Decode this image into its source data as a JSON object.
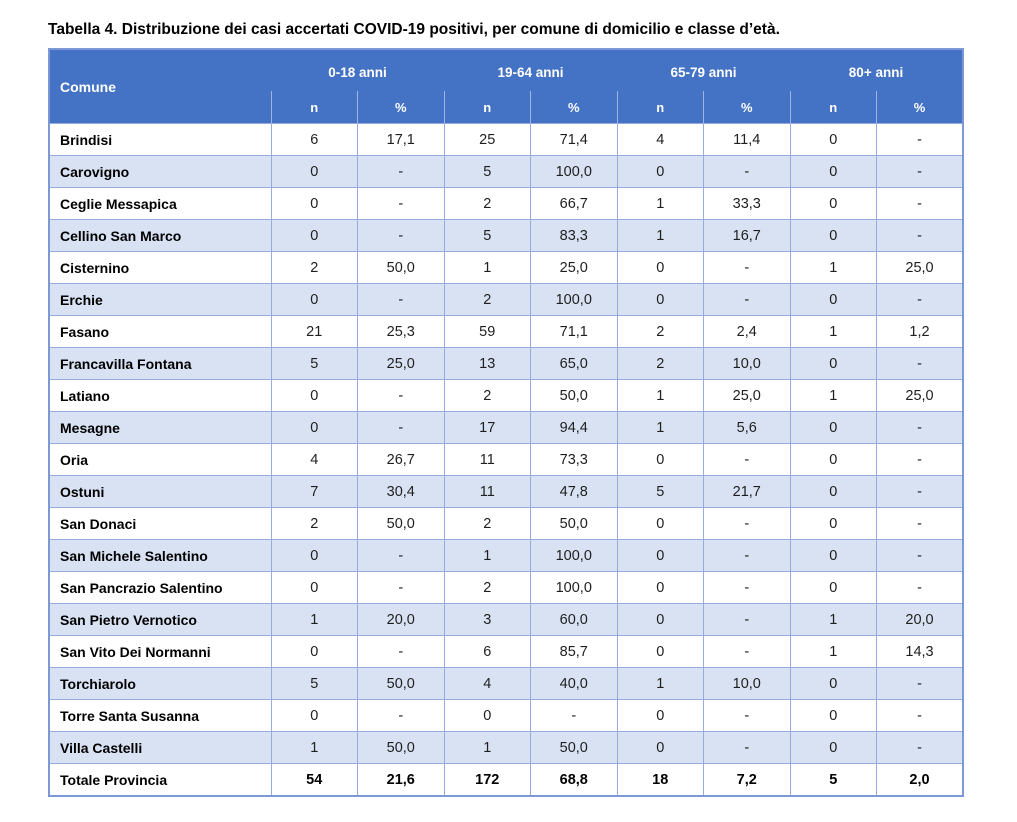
{
  "title": "Tabella 4. Distribuzione dei casi accertati COVID-19 positivi, per comune di domicilio e classe d’età.",
  "colors": {
    "header_bg": "#4472C4",
    "header_text": "#FFFFFF",
    "band_bg": "#D9E2F3",
    "grid_border": "#95ACDC",
    "outer_border": "#7C99D6"
  },
  "table": {
    "comune_header": "Comune",
    "age_groups": [
      "0-18 anni",
      "19-64 anni",
      "65-79 anni",
      "80+ anni"
    ],
    "sub_headers": [
      "n",
      "%"
    ],
    "rows": [
      {
        "comune": "Brindisi",
        "values": [
          "6",
          "17,1",
          "25",
          "71,4",
          "4",
          "11,4",
          "0",
          "-"
        ]
      },
      {
        "comune": "Carovigno",
        "values": [
          "0",
          "-",
          "5",
          "100,0",
          "0",
          "-",
          "0",
          "-"
        ]
      },
      {
        "comune": "Ceglie Messapica",
        "values": [
          "0",
          "-",
          "2",
          "66,7",
          "1",
          "33,3",
          "0",
          "-"
        ]
      },
      {
        "comune": "Cellino San Marco",
        "values": [
          "0",
          "-",
          "5",
          "83,3",
          "1",
          "16,7",
          "0",
          "-"
        ]
      },
      {
        "comune": "Cisternino",
        "values": [
          "2",
          "50,0",
          "1",
          "25,0",
          "0",
          "-",
          "1",
          "25,0"
        ]
      },
      {
        "comune": "Erchie",
        "values": [
          "0",
          "-",
          "2",
          "100,0",
          "0",
          "-",
          "0",
          "-"
        ]
      },
      {
        "comune": "Fasano",
        "values": [
          "21",
          "25,3",
          "59",
          "71,1",
          "2",
          "2,4",
          "1",
          "1,2"
        ]
      },
      {
        "comune": "Francavilla Fontana",
        "values": [
          "5",
          "25,0",
          "13",
          "65,0",
          "2",
          "10,0",
          "0",
          "-"
        ]
      },
      {
        "comune": "Latiano",
        "values": [
          "0",
          "-",
          "2",
          "50,0",
          "1",
          "25,0",
          "1",
          "25,0"
        ]
      },
      {
        "comune": "Mesagne",
        "values": [
          "0",
          "-",
          "17",
          "94,4",
          "1",
          "5,6",
          "0",
          "-"
        ]
      },
      {
        "comune": "Oria",
        "values": [
          "4",
          "26,7",
          "11",
          "73,3",
          "0",
          "-",
          "0",
          "-"
        ]
      },
      {
        "comune": "Ostuni",
        "values": [
          "7",
          "30,4",
          "11",
          "47,8",
          "5",
          "21,7",
          "0",
          "-"
        ]
      },
      {
        "comune": "San Donaci",
        "values": [
          "2",
          "50,0",
          "2",
          "50,0",
          "0",
          "-",
          "0",
          "-"
        ]
      },
      {
        "comune": "San Michele Salentino",
        "values": [
          "0",
          "-",
          "1",
          "100,0",
          "0",
          "-",
          "0",
          "-"
        ]
      },
      {
        "comune": "San Pancrazio Salentino",
        "values": [
          "0",
          "-",
          "2",
          "100,0",
          "0",
          "-",
          "0",
          "-"
        ]
      },
      {
        "comune": "San Pietro Vernotico",
        "values": [
          "1",
          "20,0",
          "3",
          "60,0",
          "0",
          "-",
          "1",
          "20,0"
        ]
      },
      {
        "comune": "San Vito Dei Normanni",
        "values": [
          "0",
          "-",
          "6",
          "85,7",
          "0",
          "-",
          "1",
          "14,3"
        ]
      },
      {
        "comune": "Torchiarolo",
        "values": [
          "5",
          "50,0",
          "4",
          "40,0",
          "1",
          "10,0",
          "0",
          "-"
        ]
      },
      {
        "comune": "Torre Santa Susanna",
        "values": [
          "0",
          "-",
          "0",
          "-",
          "0",
          "-",
          "0",
          "-"
        ]
      },
      {
        "comune": "Villa Castelli",
        "values": [
          "1",
          "50,0",
          "1",
          "50,0",
          "0",
          "-",
          "0",
          "-"
        ]
      }
    ],
    "total_row": {
      "comune": "Totale Provincia",
      "values": [
        "54",
        "21,6",
        "172",
        "68,8",
        "18",
        "7,2",
        "5",
        "2,0"
      ]
    }
  }
}
